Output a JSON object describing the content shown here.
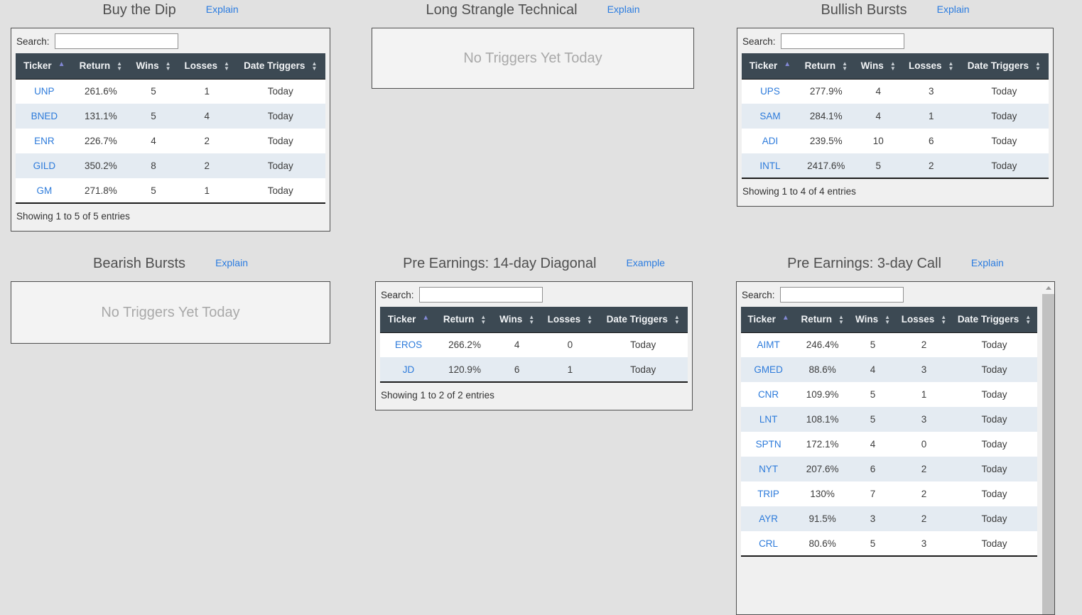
{
  "colors": {
    "page_background": "#e1e1e1",
    "panel_background": "#f0f0f0",
    "panel_border": "#4e4e4e",
    "table_header_background": "#3c4953",
    "table_header_text": "#f2f4f6",
    "row_stripe": "#e4ebf2",
    "row_white": "#ffffff",
    "ticker_link": "#2d7bdb",
    "explain_link": "#2b7ce0",
    "sort_active_arrow": "#8288d4",
    "sort_inactive_arrow": "#ccd2d7",
    "title_text": "#4f4f4f",
    "empty_message_text": "#a9a9a9",
    "scrollbar_track": "#f1f1f1",
    "scrollbar_thumb": "#c1c1c1"
  },
  "panels": [
    {
      "id": "buy-the-dip",
      "title": "Buy the Dip",
      "link": "Explain",
      "search": {
        "label": "Search:",
        "value": ""
      },
      "columns": [
        "Ticker",
        "Return",
        "Wins",
        "Losses",
        "Date Triggers"
      ],
      "sort": {
        "column_index": 0,
        "direction": "ascending"
      },
      "rows": [
        [
          "UNP",
          "261.6%",
          "5",
          "1",
          "Today"
        ],
        [
          "BNED",
          "131.1%",
          "5",
          "4",
          "Today"
        ],
        [
          "ENR",
          "226.7%",
          "4",
          "2",
          "Today"
        ],
        [
          "GILD",
          "350.2%",
          "8",
          "2",
          "Today"
        ],
        [
          "GM",
          "271.8%",
          "5",
          "1",
          "Today"
        ]
      ],
      "footer": "Showing 1 to 5 of 5 entries"
    },
    {
      "id": "long-strangle-technical",
      "title": "Long Strangle Technical",
      "link": "Explain",
      "empty_message": "No Triggers Yet Today"
    },
    {
      "id": "bullish-bursts",
      "title": "Bullish Bursts",
      "link": "Explain",
      "search": {
        "label": "Search:",
        "value": ""
      },
      "columns": [
        "Ticker",
        "Return",
        "Wins",
        "Losses",
        "Date Triggers"
      ],
      "sort": {
        "column_index": 0,
        "direction": "ascending"
      },
      "rows": [
        [
          "UPS",
          "277.9%",
          "4",
          "3",
          "Today"
        ],
        [
          "SAM",
          "284.1%",
          "4",
          "1",
          "Today"
        ],
        [
          "ADI",
          "239.5%",
          "10",
          "6",
          "Today"
        ],
        [
          "INTL",
          "2417.6%",
          "5",
          "2",
          "Today"
        ]
      ],
      "footer": "Showing 1 to 4 of 4 entries"
    },
    {
      "id": "bearish-bursts",
      "title": "Bearish Bursts",
      "link": "Explain",
      "empty_message": "No Triggers Yet Today"
    },
    {
      "id": "pre-earnings-14-day-diagonal",
      "title": "Pre Earnings: 14-day Diagonal",
      "link": "Example",
      "search": {
        "label": "Search:",
        "value": ""
      },
      "columns": [
        "Ticker",
        "Return",
        "Wins",
        "Losses",
        "Date Triggers"
      ],
      "sort": {
        "column_index": 0,
        "direction": "ascending"
      },
      "rows": [
        [
          "EROS",
          "266.2%",
          "4",
          "0",
          "Today"
        ],
        [
          "JD",
          "120.9%",
          "6",
          "1",
          "Today"
        ]
      ],
      "footer": "Showing 1 to 2 of 2 entries"
    },
    {
      "id": "pre-earnings-3-day-call",
      "title": "Pre Earnings: 3-day Call",
      "link": "Explain",
      "search": {
        "label": "Search:",
        "value": ""
      },
      "columns": [
        "Ticker",
        "Return",
        "Wins",
        "Losses",
        "Date Triggers"
      ],
      "sort": {
        "column_index": 0,
        "direction": "ascending"
      },
      "has_scrollbar": true,
      "rows": [
        [
          "AIMT",
          "246.4%",
          "5",
          "2",
          "Today"
        ],
        [
          "GMED",
          "88.6%",
          "4",
          "3",
          "Today"
        ],
        [
          "CNR",
          "109.9%",
          "5",
          "1",
          "Today"
        ],
        [
          "LNT",
          "108.1%",
          "5",
          "3",
          "Today"
        ],
        [
          "SPTN",
          "172.1%",
          "4",
          "0",
          "Today"
        ],
        [
          "NYT",
          "207.6%",
          "6",
          "2",
          "Today"
        ],
        [
          "TRIP",
          "130%",
          "7",
          "2",
          "Today"
        ],
        [
          "AYR",
          "91.5%",
          "3",
          "2",
          "Today"
        ],
        [
          "CRL",
          "80.6%",
          "5",
          "3",
          "Today"
        ]
      ]
    }
  ]
}
